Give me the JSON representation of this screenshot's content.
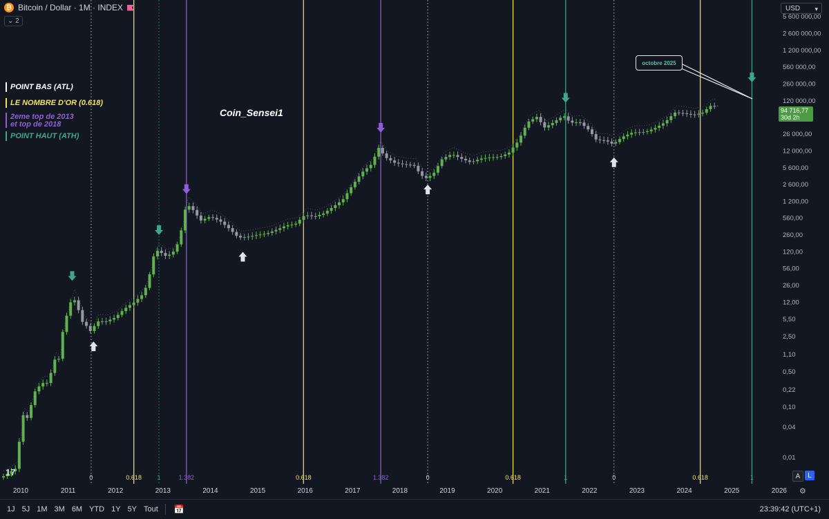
{
  "header": {
    "title": "Bitcoin / Dollar · 1M · INDEX",
    "layers": "2",
    "currency": "USD",
    "coin_glyph": "₿"
  },
  "legend": {
    "atl": "POINT BAS (ATL)",
    "gold": "LE NOMBRE D'OR (0.618)",
    "purple_1": "2eme top de 2013",
    "purple_2": "et top de 2018",
    "ath": "POINT HAUT (ATH)"
  },
  "watermark": "Coin_Sensei1",
  "callout": "octobre 2025",
  "price_badge": {
    "price": "94 716,77",
    "countdown": "30d 2h"
  },
  "toolbar": {
    "ranges": [
      "1J",
      "5J",
      "1M",
      "3M",
      "6M",
      "YTD",
      "1Y",
      "5Y",
      "Tout"
    ],
    "clock": "23:39:42 (UTC+1)"
  },
  "badges": {
    "a": "A",
    "l": "L"
  },
  "logo": "17",
  "colors": {
    "up": "#5fb24e",
    "down": "#9598a1",
    "gold": "#f2e35a",
    "purple": "#8e5fd6",
    "ath": "#3fa58e",
    "white": "#e0e3eb",
    "background": "#131722"
  },
  "chart_data": {
    "type": "candlestick",
    "log_scale": true,
    "x_range": [
      2010.0,
      2026.25
    ],
    "ylim": [
      0.003,
      12000000
    ],
    "x_labels": [
      "2010",
      "2011",
      "2012",
      "2013",
      "2014",
      "2015",
      "2016",
      "2017",
      "2018",
      "2019",
      "2020",
      "2021",
      "2022",
      "2023",
      "2024",
      "2025",
      "2026"
    ],
    "y_ticks": [
      {
        "v": 5600000,
        "label": "5 600 000,00"
      },
      {
        "v": 2600000,
        "label": "2 600 000,00"
      },
      {
        "v": 1200000,
        "label": "1 200 000,00"
      },
      {
        "v": 560000,
        "label": "560 000,00"
      },
      {
        "v": 260000,
        "label": "260 000,00"
      },
      {
        "v": 120000,
        "label": "120 000,00"
      },
      {
        "v": 26000,
        "label": "26 000,00"
      },
      {
        "v": 12000,
        "label": "12 000,00"
      },
      {
        "v": 5600,
        "label": "5 600,00"
      },
      {
        "v": 2600,
        "label": "2 600,00"
      },
      {
        "v": 1200,
        "label": "1 200,00"
      },
      {
        "v": 560,
        "label": "560,00"
      },
      {
        "v": 260,
        "label": "260,00"
      },
      {
        "v": 120,
        "label": "120,00"
      },
      {
        "v": 56,
        "label": "56,00"
      },
      {
        "v": 26,
        "label": "26,00"
      },
      {
        "v": 12,
        "label": "12,00"
      },
      {
        "v": 5.5,
        "label": "5,50"
      },
      {
        "v": 2.5,
        "label": "2,50"
      },
      {
        "v": 1.1,
        "label": "1,10"
      },
      {
        "v": 0.5,
        "label": "0,50"
      },
      {
        "v": 0.22,
        "label": "0,22"
      },
      {
        "v": 0.1,
        "label": "0,10"
      },
      {
        "v": 0.04,
        "label": "0,04"
      },
      {
        "v": 0.01,
        "label": "0,01"
      }
    ],
    "vlines": [
      {
        "x": 2011.85,
        "color": "white",
        "style": "dotted",
        "label": "0"
      },
      {
        "x": 2012.75,
        "color": "gold",
        "style": "solid",
        "label": "0.618"
      },
      {
        "x": 2013.28,
        "color": "ath",
        "style": "dotted",
        "label": "1"
      },
      {
        "x": 2013.86,
        "color": "purple",
        "style": "solid",
        "label": "1.382"
      },
      {
        "x": 2016.33,
        "color": "gold",
        "style": "solid",
        "label": "0.618"
      },
      {
        "x": 2017.96,
        "color": "purple",
        "style": "solid",
        "label": "1.382"
      },
      {
        "x": 2018.95,
        "color": "white",
        "style": "dotted",
        "label": "0"
      },
      {
        "x": 2020.75,
        "color": "gold",
        "style": "solid",
        "label": "0.618"
      },
      {
        "x": 2021.86,
        "color": "ath",
        "style": "solid",
        "label": "1"
      },
      {
        "x": 2022.88,
        "color": "white",
        "style": "dotted",
        "label": "0"
      },
      {
        "x": 2024.7,
        "color": "gold",
        "style": "solid",
        "label": "0.618"
      },
      {
        "x": 2025.79,
        "color": "ath",
        "style": "solid",
        "label": "1"
      }
    ],
    "markers": [
      {
        "x": 2011.45,
        "price": 32,
        "dir": "down",
        "color": "ath"
      },
      {
        "x": 2011.9,
        "price": 2.0,
        "dir": "up",
        "color": "white"
      },
      {
        "x": 2013.28,
        "price": 260,
        "dir": "down",
        "color": "ath"
      },
      {
        "x": 2013.86,
        "price": 1700,
        "dir": "down",
        "color": "purple"
      },
      {
        "x": 2015.05,
        "price": 120,
        "dir": "up",
        "color": "white"
      },
      {
        "x": 2017.96,
        "price": 28000,
        "dir": "down",
        "color": "purple"
      },
      {
        "x": 2018.95,
        "price": 2600,
        "dir": "up",
        "color": "white"
      },
      {
        "x": 2021.86,
        "price": 110000,
        "dir": "down",
        "color": "ath"
      },
      {
        "x": 2022.88,
        "price": 9000,
        "dir": "up",
        "color": "white"
      },
      {
        "x": 2025.79,
        "price": 280000,
        "dir": "down",
        "color": "ath"
      }
    ],
    "path": [
      [
        2010.0,
        0.004
      ],
      [
        2010.3,
        0.006
      ],
      [
        2010.45,
        0.07
      ],
      [
        2010.55,
        0.06
      ],
      [
        2010.7,
        0.2
      ],
      [
        2010.85,
        0.3
      ],
      [
        2011.0,
        0.3
      ],
      [
        2011.1,
        0.9
      ],
      [
        2011.2,
        0.8
      ],
      [
        2011.3,
        3.5
      ],
      [
        2011.4,
        8
      ],
      [
        2011.5,
        16
      ],
      [
        2011.6,
        10
      ],
      [
        2011.7,
        5
      ],
      [
        2011.8,
        4
      ],
      [
        2011.9,
        3
      ],
      [
        2012.0,
        5
      ],
      [
        2012.2,
        5
      ],
      [
        2012.4,
        6
      ],
      [
        2012.6,
        9
      ],
      [
        2012.8,
        12
      ],
      [
        2013.0,
        18
      ],
      [
        2013.1,
        33
      ],
      [
        2013.2,
        95
      ],
      [
        2013.3,
        130
      ],
      [
        2013.45,
        100
      ],
      [
        2013.6,
        110
      ],
      [
        2013.75,
        200
      ],
      [
        2013.9,
        1100
      ],
      [
        2014.05,
        800
      ],
      [
        2014.2,
        500
      ],
      [
        2014.4,
        600
      ],
      [
        2014.6,
        500
      ],
      [
        2014.8,
        350
      ],
      [
        2015.0,
        230
      ],
      [
        2015.2,
        240
      ],
      [
        2015.4,
        260
      ],
      [
        2015.6,
        280
      ],
      [
        2015.8,
        330
      ],
      [
        2016.0,
        400
      ],
      [
        2016.2,
        430
      ],
      [
        2016.4,
        650
      ],
      [
        2016.6,
        600
      ],
      [
        2016.8,
        700
      ],
      [
        2017.0,
        950
      ],
      [
        2017.2,
        1300
      ],
      [
        2017.4,
        2500
      ],
      [
        2017.6,
        4500
      ],
      [
        2017.8,
        6500
      ],
      [
        2017.96,
        14000
      ],
      [
        2018.1,
        9000
      ],
      [
        2018.3,
        7000
      ],
      [
        2018.5,
        6500
      ],
      [
        2018.7,
        6300
      ],
      [
        2018.85,
        4000
      ],
      [
        2018.95,
        3500
      ],
      [
        2019.1,
        4100
      ],
      [
        2019.3,
        8500
      ],
      [
        2019.5,
        10500
      ],
      [
        2019.7,
        8500
      ],
      [
        2019.9,
        7200
      ],
      [
        2020.1,
        8500
      ],
      [
        2020.3,
        9000
      ],
      [
        2020.5,
        9200
      ],
      [
        2020.7,
        11000
      ],
      [
        2020.9,
        19000
      ],
      [
        2021.1,
        45000
      ],
      [
        2021.3,
        58000
      ],
      [
        2021.45,
        35000
      ],
      [
        2021.6,
        42000
      ],
      [
        2021.86,
        61000
      ],
      [
        2022.0,
        44000
      ],
      [
        2022.2,
        45000
      ],
      [
        2022.4,
        31000
      ],
      [
        2022.55,
        20000
      ],
      [
        2022.75,
        19500
      ],
      [
        2022.9,
        16500
      ],
      [
        2023.1,
        23000
      ],
      [
        2023.3,
        28000
      ],
      [
        2023.6,
        29000
      ],
      [
        2023.8,
        35000
      ],
      [
        2024.0,
        45000
      ],
      [
        2024.2,
        70000
      ],
      [
        2024.4,
        67000
      ],
      [
        2024.6,
        63000
      ],
      [
        2024.8,
        70000
      ],
      [
        2024.95,
        95000
      ],
      [
        2025.05,
        94716
      ]
    ]
  }
}
